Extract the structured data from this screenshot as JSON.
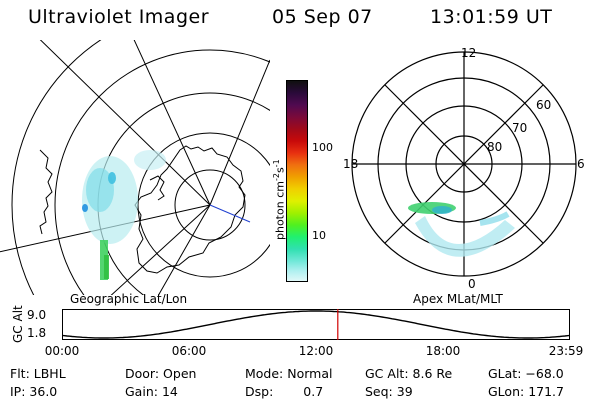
{
  "header": {
    "title": "Ultraviolet Imager",
    "date": "05 Sep 07",
    "time": "13:01:59 UT"
  },
  "geo_panel": {
    "label": "Geographic Lat/Lon"
  },
  "colorbar": {
    "unit_prefix": "photon cm",
    "unit_exp1": "-2",
    "unit_mid": "s",
    "unit_exp2": "-1",
    "tick_labels": [
      "100",
      "10"
    ],
    "colors": [
      "#101010",
      "#2a0a3a",
      "#500a50",
      "#7a0a3a",
      "#a00a1a",
      "#c80a0a",
      "#e83010",
      "#f07010",
      "#f0a000",
      "#f0d000",
      "#e0f000",
      "#a0f000",
      "#50f020",
      "#20f070",
      "#30e0b0",
      "#70e8d8",
      "#b0f0f0",
      "#e0f8f8"
    ]
  },
  "polar_panel": {
    "label": "Apex MLat/MLT",
    "mlt_labels": [
      "12",
      "18",
      "6",
      "0"
    ],
    "mlat_labels": [
      "60",
      "70",
      "80"
    ]
  },
  "altitude_plot": {
    "ylabel": "GC Alt",
    "yticks": [
      "9.0",
      "1.8"
    ],
    "xticks": [
      "00:00",
      "06:00",
      "12:00",
      "18:00",
      "23:59"
    ],
    "current_time_hours": 13.03
  },
  "info": {
    "row1": [
      {
        "label": "Flt:",
        "value": "LBHL"
      },
      {
        "label": "Door:",
        "value": "Open"
      },
      {
        "label": "Mode:",
        "value": "Normal"
      },
      {
        "label": "GC Alt:",
        "value": "8.6 Re"
      },
      {
        "label": "GLat:",
        "value": "−68.0"
      }
    ],
    "row2": [
      {
        "label": "IP:",
        "value": "36.0"
      },
      {
        "label": "Gain:",
        "value": "14"
      },
      {
        "label": "Dsp:",
        "value": "0.7"
      },
      {
        "label": "Seq:",
        "value": "39"
      },
      {
        "label": "GLon:",
        "value": "171.7"
      }
    ]
  },
  "colors": {
    "accent_red": "#d00000",
    "aurora_blue": "#1e90ff",
    "aurora_green": "#32cd32"
  }
}
